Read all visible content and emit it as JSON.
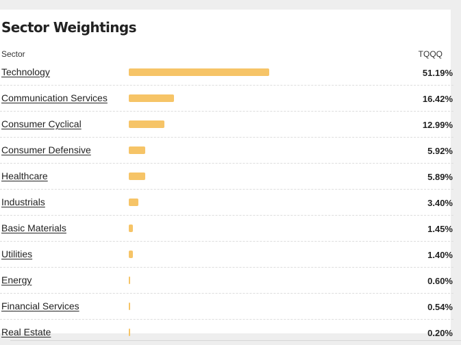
{
  "section": {
    "title": "Sector Weightings",
    "column_sector": "Sector",
    "column_fund": "TQQQ"
  },
  "colors": {
    "bar": "#f6c467",
    "divider": "#dcdcdc"
  },
  "rows": [
    {
      "label": "Technology",
      "value": "51.19%",
      "percent": 51.19
    },
    {
      "label": "Communication Services",
      "value": "16.42%",
      "percent": 16.42
    },
    {
      "label": "Consumer Cyclical",
      "value": "12.99%",
      "percent": 12.99
    },
    {
      "label": "Consumer Defensive",
      "value": "5.92%",
      "percent": 5.92
    },
    {
      "label": "Healthcare",
      "value": "5.89%",
      "percent": 5.89
    },
    {
      "label": "Industrials",
      "value": "3.40%",
      "percent": 3.4
    },
    {
      "label": "Basic Materials",
      "value": "1.45%",
      "percent": 1.45
    },
    {
      "label": "Utilities",
      "value": "1.40%",
      "percent": 1.4
    },
    {
      "label": "Energy",
      "value": "0.60%",
      "percent": 0.6
    },
    {
      "label": "Financial Services",
      "value": "0.54%",
      "percent": 0.54
    },
    {
      "label": "Real Estate",
      "value": "0.20%",
      "percent": 0.2
    }
  ]
}
